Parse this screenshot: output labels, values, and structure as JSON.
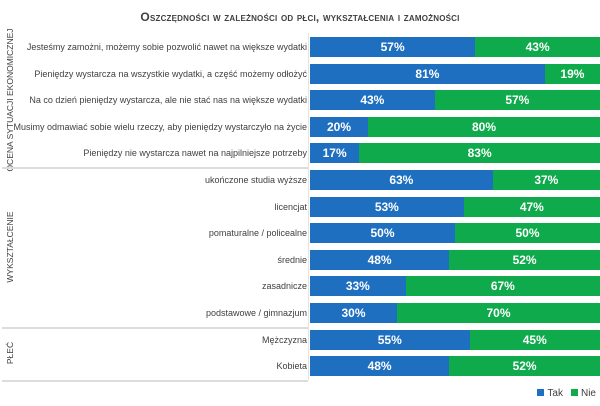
{
  "chart_data": {
    "type": "bar",
    "stacked": true,
    "orientation": "horizontal",
    "percent": true,
    "title": "Oszczędności w zależności od płci, wykształcenia i zamożności",
    "groups": [
      {
        "name": "OCENA SYTUACJI EKONOMICZNEJ",
        "categories": [
          {
            "label": "Jesteśmy zamożni, możemy sobie pozwolić nawet na większe wydatki",
            "tak": 57,
            "nie": 43
          },
          {
            "label": "Pieniędzy wystarcza na wszystkie wydatki, a część możemy odłożyć",
            "tak": 81,
            "nie": 19
          },
          {
            "label": "Na co dzień pieniędzy wystarcza, ale nie stać nas na większe wydatki",
            "tak": 43,
            "nie": 57
          },
          {
            "label": "Musimy odmawiać sobie wielu rzeczy, aby pieniędzy wystarczyło na życie",
            "tak": 20,
            "nie": 80
          },
          {
            "label": "Pieniędzy nie wystarcza nawet na najpilniejsze potrzeby",
            "tak": 17,
            "nie": 83
          }
        ]
      },
      {
        "name": "WYKSZTAŁCENIE",
        "categories": [
          {
            "label": "ukończone studia wyższe",
            "tak": 63,
            "nie": 37
          },
          {
            "label": "licencjat",
            "tak": 53,
            "nie": 47
          },
          {
            "label": "pomaturalne / policealne",
            "tak": 50,
            "nie": 50
          },
          {
            "label": "średnie",
            "tak": 48,
            "nie": 52
          },
          {
            "label": "zasadnicze",
            "tak": 33,
            "nie": 67
          },
          {
            "label": "podstawowe / gimnazjum",
            "tak": 30,
            "nie": 70
          }
        ]
      },
      {
        "name": "PŁEĆ",
        "categories": [
          {
            "label": "Mężczyzna",
            "tak": 55,
            "nie": 45
          },
          {
            "label": "Kobieta",
            "tak": 48,
            "nie": 52
          }
        ]
      }
    ],
    "series": [
      {
        "name": "Tak",
        "color": "#1f6fc1"
      },
      {
        "name": "Nie",
        "color": "#0faa4b"
      }
    ],
    "legend": "bottom-right",
    "xlim": [
      0,
      100
    ],
    "grid": false
  }
}
